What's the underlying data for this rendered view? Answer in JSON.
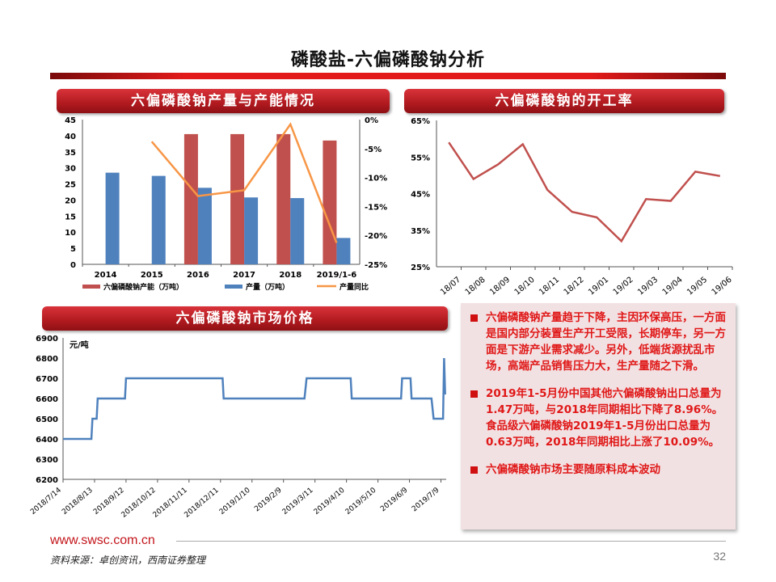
{
  "page": {
    "title": "磷酸盐-六偏磷酸钠分析",
    "sections": {
      "capacity": "六偏磷酸钠产量与产能情况",
      "operating_rate": "六偏磷酸钠的开工率",
      "price": "六偏磷酸钠市场价格"
    },
    "notes": [
      "六偏磷酸钠产量趋于下降，主因环保高压，一方面是国内部分装置生产开工受限，长期停车，另一方面是下游产业需求减少。另外，低端货源扰乱市场，高端产品销售压力大，生产量随之下滑。",
      "2019年1-5月份中国其他六偏磷酸钠出口总量为1.47万吨，与2018年同期相比下降了8.96%。食品级六偏磷酸钠2019年1-5月份出口总量为0.63万吨，2018年同期相比上涨了10.09%。",
      "六偏磷酸钠市场主要随原料成本波动"
    ],
    "footer": {
      "url": "www.swsc.com.cn",
      "source": "资料来源：卓创资讯，西南证券整理",
      "page_number": "32"
    },
    "colors": {
      "brand_red": "#c3161c",
      "capacity_bar": "#c0504d",
      "output_bar": "#4f81bd",
      "yoy_line": "#f79646",
      "note_text": "#e01818"
    }
  },
  "chart_data": [
    {
      "type": "bar",
      "title": "六偏磷酸钠产量与产能情况",
      "categories": [
        "2014",
        "2015",
        "2016",
        "2017",
        "2018",
        "2019/1-6"
      ],
      "series": [
        {
          "name": "六偏磷酸钠产能（万吨）",
          "type": "bar",
          "axis": "left",
          "values": [
            null,
            null,
            40.5,
            40.5,
            40.5,
            38.5
          ]
        },
        {
          "name": "产量（万吨）",
          "type": "bar",
          "axis": "left",
          "values": [
            28.5,
            27.5,
            23.8,
            20.8,
            20.6,
            8.2
          ]
        },
        {
          "name": "产量同比",
          "type": "line",
          "axis": "right",
          "values": [
            null,
            -3.8,
            -13.2,
            -12.2,
            -0.8,
            -21.3
          ]
        }
      ],
      "ylim": [
        0,
        45
      ],
      "yticks": [
        0,
        5,
        10,
        15,
        20,
        25,
        30,
        35,
        40,
        45
      ],
      "y2lim": [
        -25,
        0
      ],
      "y2ticks": [
        "0%",
        "-5%",
        "-10%",
        "-15%",
        "-20%",
        "-25%"
      ],
      "legend_position": "bottom"
    },
    {
      "type": "line",
      "title": "六偏磷酸钠的开工率",
      "categories": [
        "18/07",
        "18/08",
        "18/09",
        "18/10",
        "18/11",
        "18/12",
        "19/01",
        "19/02",
        "19/03",
        "19/04",
        "19/05",
        "19/06"
      ],
      "series": [
        {
          "name": "开工率",
          "values": [
            59,
            49,
            53,
            58.5,
            46,
            40,
            38.5,
            32,
            43.5,
            43,
            51,
            49.8
          ]
        }
      ],
      "ylim": [
        25,
        65
      ],
      "yticks": [
        "25%",
        "35%",
        "45%",
        "55%",
        "65%"
      ]
    },
    {
      "type": "line",
      "title": "六偏磷酸钠市场价格",
      "ylabel": "元/吨",
      "xticks": [
        "2018/7/14",
        "2018/8/13",
        "2018/9/12",
        "2018/10/12",
        "2018/11/11",
        "2018/12/11",
        "2019/1/10",
        "2019/2/9",
        "2019/3/11",
        "2019/4/10",
        "2019/5/10",
        "2019/6/9",
        "2019/7/9"
      ],
      "ylim": [
        6200,
        6900
      ],
      "yticks": [
        6200,
        6300,
        6400,
        6500,
        6600,
        6700,
        6800,
        6900
      ],
      "series": [
        {
          "name": "价格",
          "points": [
            [
              "2018/7/14",
              6400
            ],
            [
              "2018/8/10",
              6400
            ],
            [
              "2018/8/11",
              6500
            ],
            [
              "2018/8/15",
              6500
            ],
            [
              "2018/8/16",
              6600
            ],
            [
              "2018/9/11",
              6600
            ],
            [
              "2018/9/12",
              6700
            ],
            [
              "2018/12/13",
              6700
            ],
            [
              "2018/12/14",
              6600
            ],
            [
              "2019/3/1",
              6600
            ],
            [
              "2019/3/3",
              6700
            ],
            [
              "2019/4/14",
              6700
            ],
            [
              "2019/4/15",
              6600
            ],
            [
              "2019/6/1",
              6600
            ],
            [
              "2019/6/2",
              6700
            ],
            [
              "2019/6/10",
              6700
            ],
            [
              "2019/6/11",
              6600
            ],
            [
              "2019/6/30",
              6600
            ],
            [
              "2019/7/2",
              6500
            ],
            [
              "2019/7/11",
              6500
            ],
            [
              "2019/7/12",
              6800
            ],
            [
              "2019/7/13",
              6620
            ]
          ]
        }
      ]
    }
  ]
}
